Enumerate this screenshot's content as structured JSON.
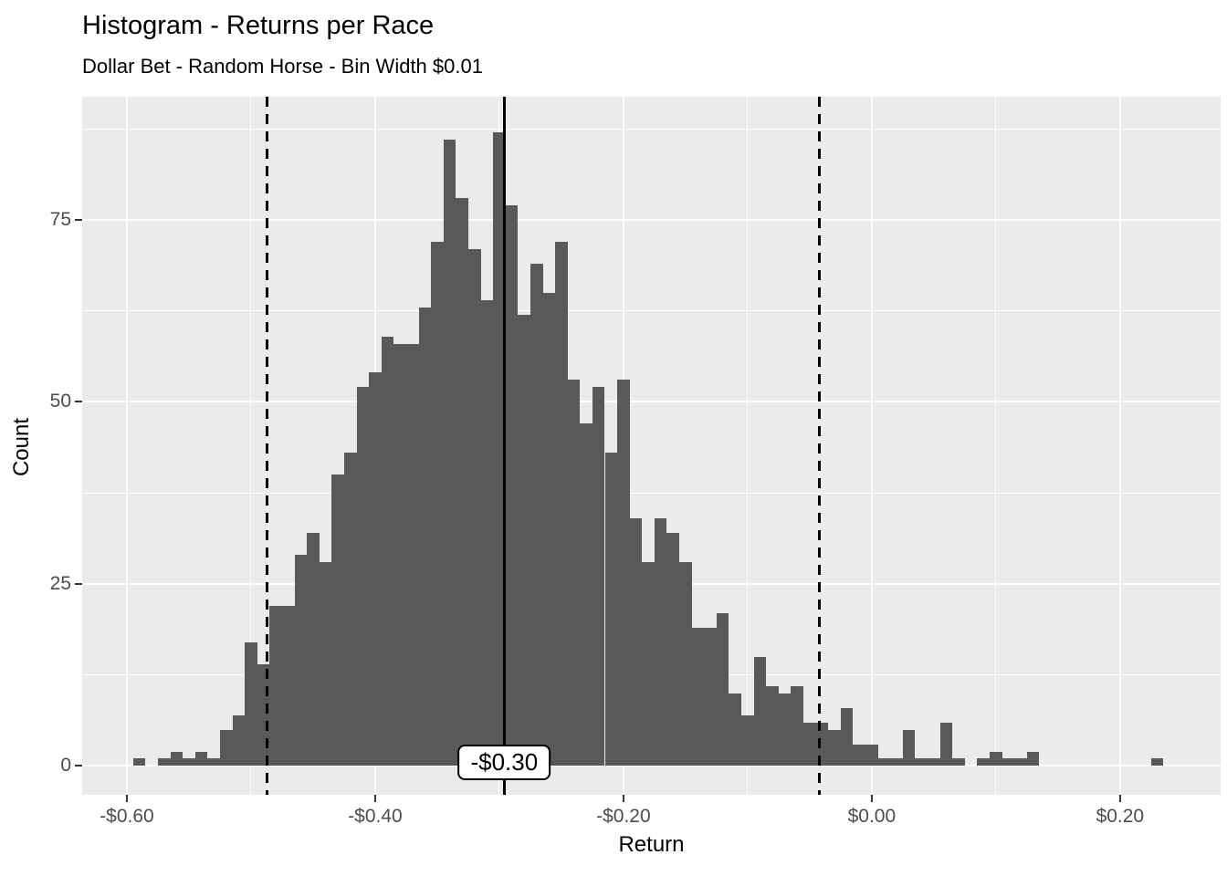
{
  "title": "Histogram - Returns per Race",
  "subtitle": "Dollar Bet - Random Horse - Bin Width $0.01",
  "chart_data": {
    "type": "bar",
    "title": "Histogram - Returns per Race",
    "subtitle": "Dollar Bet - Random Horse - Bin Width $0.01",
    "xlabel": "Return",
    "ylabel": "Count",
    "bin_width": 0.01,
    "bin_centers": [
      -0.59,
      -0.58,
      -0.57,
      -0.56,
      -0.55,
      -0.54,
      -0.53,
      -0.52,
      -0.51,
      -0.5,
      -0.49,
      -0.48,
      -0.47,
      -0.46,
      -0.45,
      -0.44,
      -0.43,
      -0.42,
      -0.41,
      -0.4,
      -0.39,
      -0.38,
      -0.37,
      -0.36,
      -0.35,
      -0.34,
      -0.33,
      -0.32,
      -0.31,
      -0.3,
      -0.29,
      -0.28,
      -0.27,
      -0.26,
      -0.25,
      -0.24,
      -0.23,
      -0.22,
      -0.21,
      -0.2,
      -0.19,
      -0.18,
      -0.17,
      -0.16,
      -0.15,
      -0.14,
      -0.13,
      -0.12,
      -0.11,
      -0.1,
      -0.09,
      -0.08,
      -0.07,
      -0.06,
      -0.05,
      -0.04,
      -0.03,
      -0.02,
      -0.01,
      0.0,
      0.01,
      0.02,
      0.03,
      0.04,
      0.05,
      0.06,
      0.07,
      0.08,
      0.09,
      0.1,
      0.11,
      0.12,
      0.13,
      0.14,
      0.15,
      0.16,
      0.17,
      0.18,
      0.19,
      0.2,
      0.21,
      0.22,
      0.23
    ],
    "counts": [
      1,
      0,
      1,
      2,
      1,
      2,
      1,
      5,
      7,
      17,
      14,
      22,
      22,
      29,
      32,
      28,
      40,
      43,
      52,
      54,
      59,
      58,
      58,
      63,
      72,
      86,
      78,
      71,
      64,
      87,
      77,
      62,
      69,
      65,
      72,
      53,
      47,
      52,
      43,
      53,
      34,
      28,
      34,
      32,
      28,
      19,
      19,
      21,
      10,
      7,
      15,
      11,
      10,
      11,
      6,
      6,
      5,
      8,
      3,
      3,
      1,
      1,
      5,
      1,
      1,
      6,
      1,
      0,
      1,
      2,
      1,
      1,
      2,
      0,
      0,
      0,
      0,
      0,
      0,
      0,
      0,
      0,
      1
    ],
    "x_ticks": [
      {
        "value": -0.6,
        "label": "-$0.60"
      },
      {
        "value": -0.4,
        "label": "-$0.40"
      },
      {
        "value": -0.2,
        "label": "-$0.20"
      },
      {
        "value": 0.0,
        "label": "$0.00"
      },
      {
        "value": 0.2,
        "label": "$0.20"
      }
    ],
    "y_ticks": [
      {
        "value": 0,
        "label": "0"
      },
      {
        "value": 25,
        "label": "25"
      },
      {
        "value": 50,
        "label": "50"
      },
      {
        "value": 75,
        "label": "75"
      }
    ],
    "x_minor": [
      -0.5,
      -0.3,
      -0.1,
      0.1
    ],
    "y_minor": [
      12.5,
      37.5,
      62.5,
      87.5
    ],
    "xlim": [
      -0.636,
      0.281
    ],
    "ylim": [
      -3.95,
      91.9
    ],
    "mean_line": {
      "value": -0.296,
      "label": "-$0.30"
    },
    "dashed_lines": [
      -0.487,
      -0.042
    ],
    "grid": true,
    "legend": "none",
    "colors": {
      "bar": "#595959",
      "panel": "#EBEBEB",
      "grid": "#FFFFFF",
      "axis_text": "#4D4D4D",
      "line": "#000000"
    }
  }
}
